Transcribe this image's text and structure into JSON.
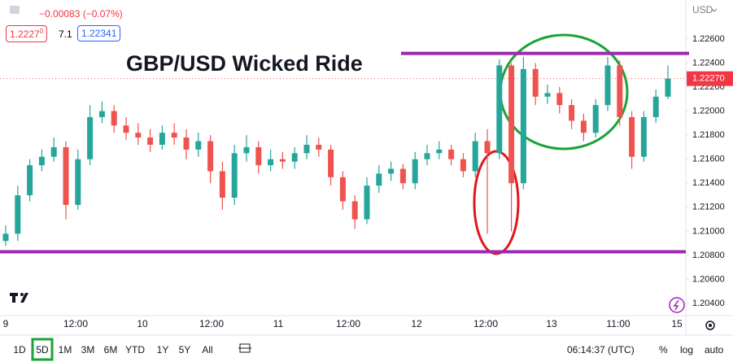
{
  "header": {
    "change": "−0.00083 (−0.07%)",
    "bid_main": "1.2227",
    "bid_sup": "0",
    "spread": "7.1",
    "ask": "1.22341",
    "currency": "USD"
  },
  "chart_data": {
    "type": "candlestick",
    "title": "GBP/USD Wicked Ride",
    "open": [
      1.2092,
      1.2098,
      1.213,
      1.2155,
      1.2162,
      1.217,
      1.2122,
      1.216,
      1.2195,
      1.22,
      1.2188,
      1.2182,
      1.2178,
      1.2172,
      1.2182,
      1.2178,
      1.2168,
      1.2175,
      1.215,
      1.2128,
      1.2165,
      1.217,
      1.2155,
      1.216,
      1.2158,
      1.2165,
      1.2172,
      1.2168,
      1.2145,
      1.2125,
      1.211,
      1.2138,
      1.2148,
      1.2152,
      1.214,
      1.216,
      1.2165,
      1.2168,
      1.216,
      1.215,
      1.2175,
      1.2165,
      1.2238,
      1.214,
      1.2235,
      1.2212,
      1.2215,
      1.2205,
      1.2192,
      1.2182,
      1.2205,
      1.2238,
      1.2195,
      1.2162,
      1.2195,
      1.2212
    ],
    "high": [
      1.2105,
      1.2138,
      1.216,
      1.2168,
      1.2178,
      1.2175,
      1.2168,
      1.2205,
      1.2208,
      1.2205,
      1.2195,
      1.219,
      1.2185,
      1.2188,
      1.219,
      1.2185,
      1.2182,
      1.218,
      1.2158,
      1.2172,
      1.218,
      1.2175,
      1.2168,
      1.2166,
      1.217,
      1.218,
      1.2178,
      1.2172,
      1.215,
      1.213,
      1.2145,
      1.2155,
      1.2158,
      1.2156,
      1.2166,
      1.2172,
      1.2175,
      1.2172,
      1.2165,
      1.2182,
      1.2185,
      1.2243,
      1.224,
      1.2245,
      1.224,
      1.2222,
      1.222,
      1.221,
      1.2198,
      1.221,
      1.2245,
      1.2242,
      1.22,
      1.22,
      1.2218,
      1.2238
    ],
    "low": [
      1.2088,
      1.2092,
      1.2125,
      1.215,
      1.2158,
      1.211,
      1.2118,
      1.2155,
      1.219,
      1.2182,
      1.2176,
      1.2172,
      1.2166,
      1.2168,
      1.2172,
      1.216,
      1.2162,
      1.214,
      1.2118,
      1.2122,
      1.2158,
      1.2148,
      1.215,
      1.2152,
      1.2152,
      1.216,
      1.2162,
      1.2138,
      1.2118,
      1.2102,
      1.2106,
      1.2132,
      1.2142,
      1.2135,
      1.2135,
      1.2155,
      1.216,
      1.2155,
      1.2145,
      1.2145,
      1.2098,
      1.216,
      1.21,
      1.2135,
      1.2205,
      1.2206,
      1.2198,
      1.2185,
      1.2175,
      1.2178,
      1.22,
      1.2188,
      1.2152,
      1.2158,
      1.219,
      1.221
    ],
    "close": [
      1.2098,
      1.213,
      1.2155,
      1.2162,
      1.217,
      1.2122,
      1.216,
      1.2195,
      1.22,
      1.2188,
      1.2182,
      1.2178,
      1.2172,
      1.2182,
      1.2178,
      1.2168,
      1.2175,
      1.215,
      1.2128,
      1.2165,
      1.217,
      1.2155,
      1.216,
      1.2158,
      1.2165,
      1.2172,
      1.2168,
      1.2145,
      1.2125,
      1.211,
      1.2138,
      1.2148,
      1.2152,
      1.214,
      1.216,
      1.2165,
      1.2168,
      1.216,
      1.215,
      1.2175,
      1.2165,
      1.2238,
      1.214,
      1.2235,
      1.2212,
      1.2215,
      1.2205,
      1.2192,
      1.2182,
      1.2205,
      1.2238,
      1.2195,
      1.2162,
      1.2195,
      1.2212,
      1.2227
    ],
    "up_color": "#26a69a",
    "down_color": "#ef5350",
    "xtick_labels": [
      "9",
      "12:00",
      "10",
      "12:00",
      "11",
      "12:00",
      "12",
      "12:00",
      "13",
      "11:00",
      "15"
    ],
    "ylim": [
      1.20299,
      1.22924
    ],
    "yticks": [
      {
        "value": 1.226,
        "label": "1.22600"
      },
      {
        "value": 1.224,
        "label": "1.22400"
      },
      {
        "value": 1.222,
        "label": "1.22200"
      },
      {
        "value": 1.22,
        "label": "1.22000"
      },
      {
        "value": 1.218,
        "label": "1.21800"
      },
      {
        "value": 1.216,
        "label": "1.21600"
      },
      {
        "value": 1.214,
        "label": "1.21400"
      },
      {
        "value": 1.212,
        "label": "1.21200"
      },
      {
        "value": 1.21,
        "label": "1.21000"
      },
      {
        "value": 1.208,
        "label": "1.20800"
      },
      {
        "value": 1.206,
        "label": "1.20600"
      },
      {
        "value": 1.204,
        "label": "1.20400"
      }
    ],
    "last_price": 1.2227,
    "last_price_label": "1.22270",
    "hlines": [
      1.2248,
      1.2083
    ],
    "hline_color": "#9c27b0"
  },
  "toolbar": {
    "ranges": [
      "1D",
      "5D",
      "1M",
      "3M",
      "6M",
      "YTD",
      "1Y",
      "5Y",
      "All"
    ],
    "clock": "06:14:37 (UTC)",
    "percent": "%",
    "log": "log",
    "auto": "auto"
  }
}
